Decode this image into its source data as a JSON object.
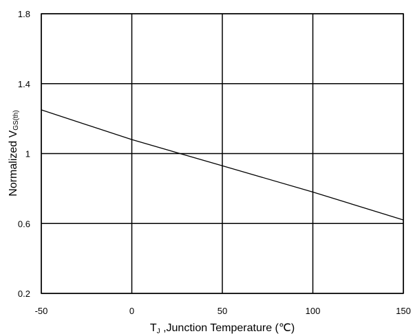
{
  "chart_data": {
    "type": "line",
    "title": "",
    "xlabel": {
      "symbol": "T",
      "subscript": "J",
      "text": " ,Junction Temperature (℃)"
    },
    "ylabel": {
      "text": "Normalized V",
      "subscript": "GS(th)"
    },
    "xlim": [
      -50,
      150
    ],
    "ylim": [
      0.2,
      1.8
    ],
    "x_ticks": [
      "-50",
      "0",
      "50",
      "100",
      "150"
    ],
    "y_ticks": [
      "0.2",
      "0.6",
      "1",
      "1.4",
      "1.8"
    ],
    "grid": true,
    "legend": "none",
    "series": [
      {
        "x": [
          -50,
          0,
          50,
          100,
          150
        ],
        "y": [
          1.25,
          1.08,
          0.93,
          0.78,
          0.62
        ],
        "color": "#000000"
      }
    ]
  }
}
